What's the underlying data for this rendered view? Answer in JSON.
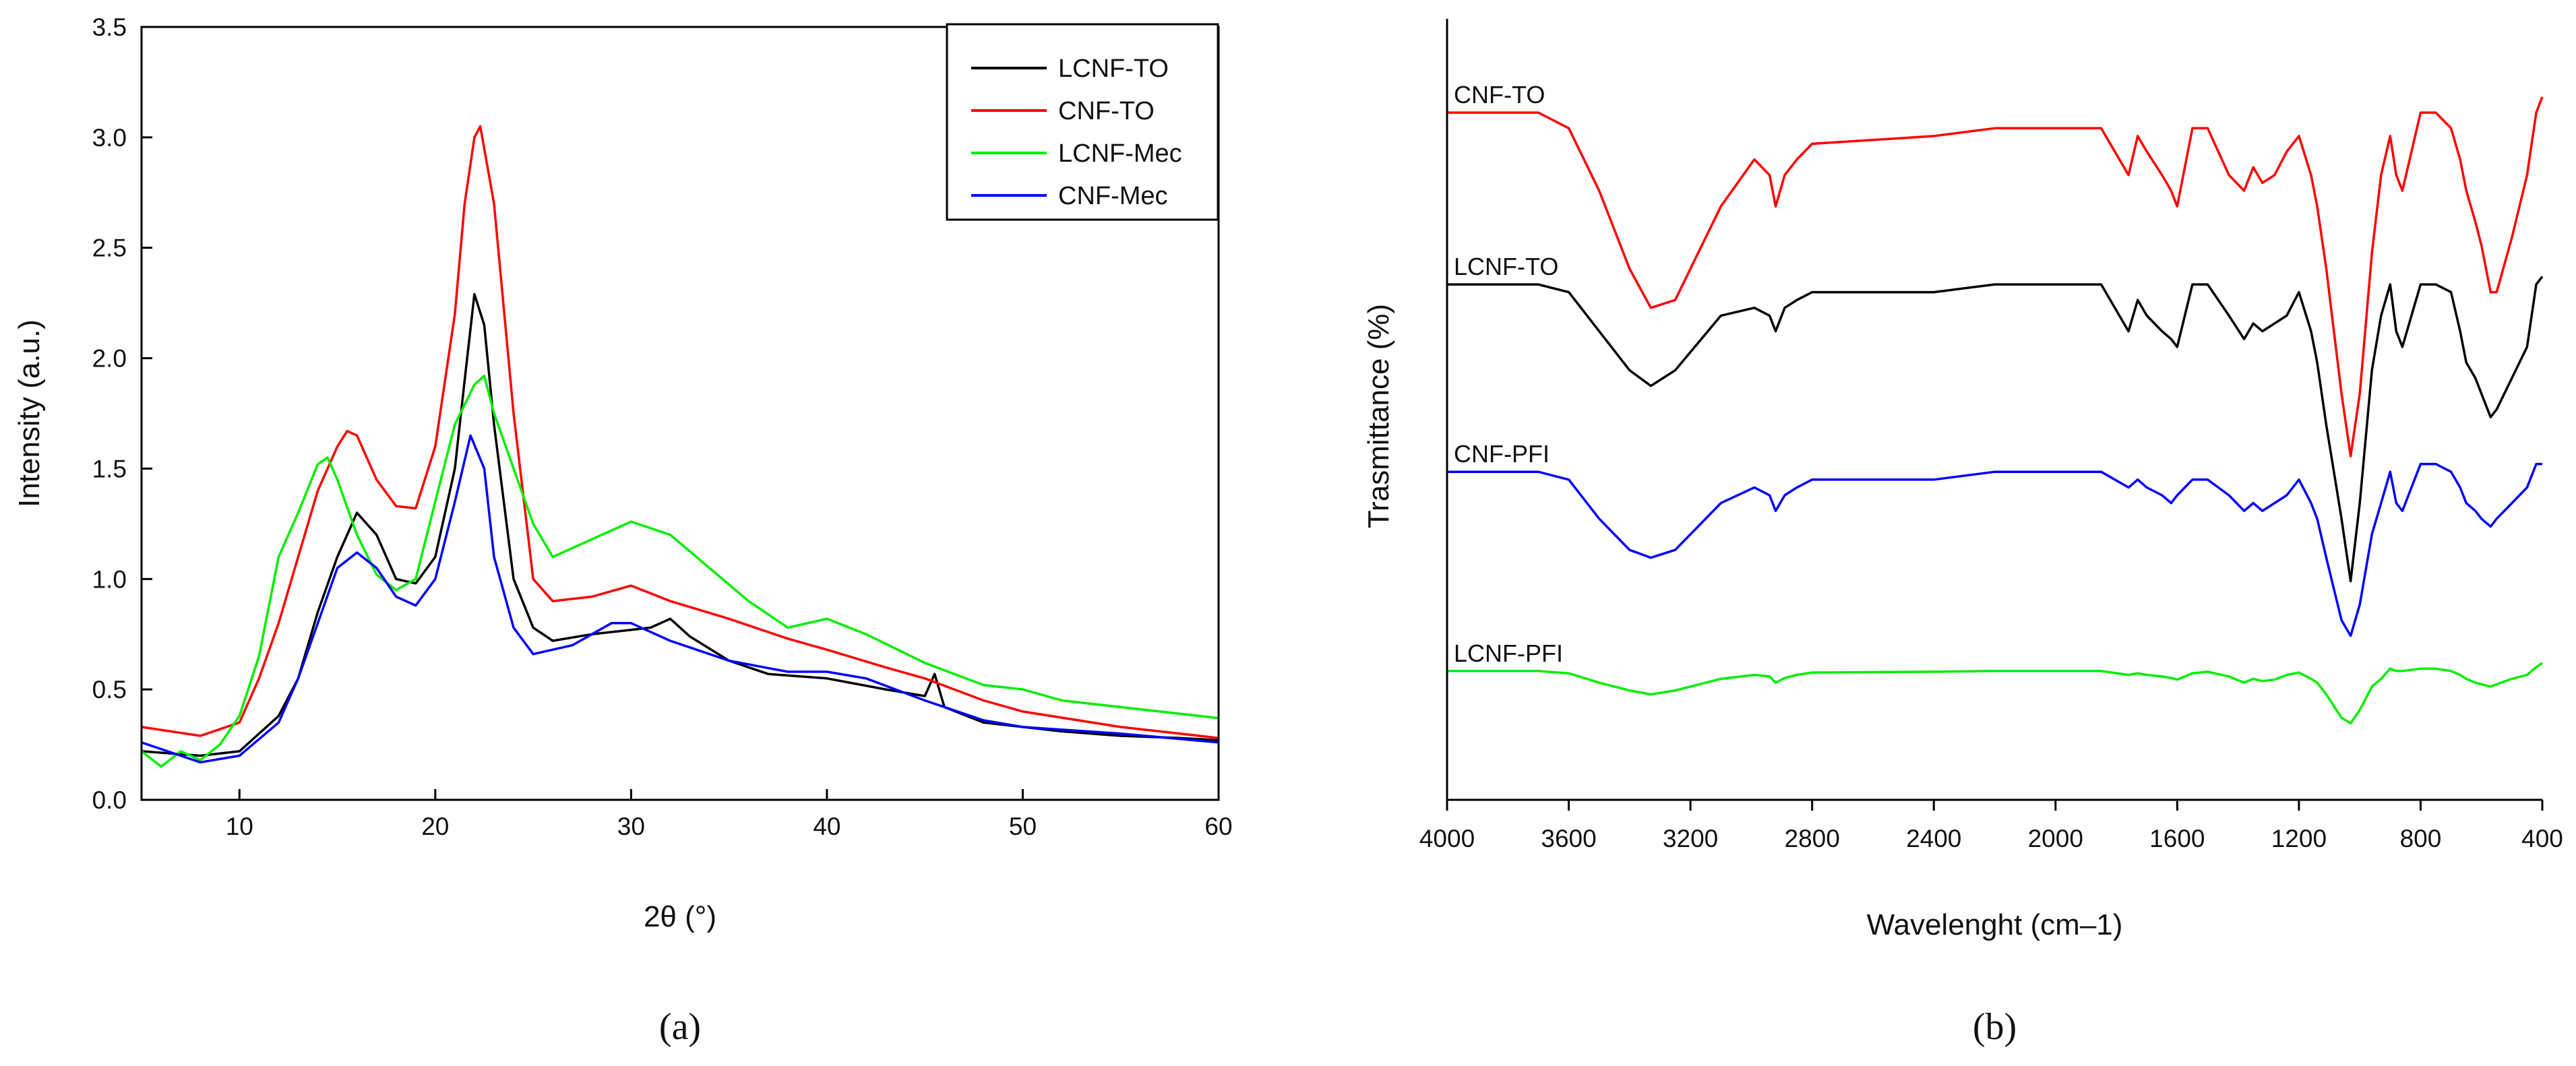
{
  "chart_data": [
    {
      "type": "line",
      "panel_label": "(a)",
      "xlabel": "2θ (°)",
      "ylabel": "Intensity (a.u.)",
      "xlim": [
        5,
        60
      ],
      "ylim": [
        0,
        3.5
      ],
      "xticks": [
        10,
        20,
        30,
        40,
        50,
        60
      ],
      "xtick_labels": [
        "10",
        "20",
        "30",
        "40",
        "50",
        "60"
      ],
      "yticks": [
        0,
        0.5,
        1.0,
        1.5,
        2.0,
        2.5,
        3.0,
        3.5
      ],
      "ytick_labels": [
        "0.0",
        "0.5",
        "1.0",
        "1.5",
        "2.0",
        "2.5",
        "3.0",
        "3.5"
      ],
      "legend_position": "top-right",
      "series": [
        {
          "name": "LCNF-TO",
          "color": "#000000",
          "x": [
            5,
            8,
            10,
            12,
            13,
            14,
            15,
            16,
            17,
            18,
            19,
            20,
            21,
            21.5,
            22,
            22.5,
            23,
            24,
            25,
            26,
            28,
            30,
            31,
            32,
            33,
            35,
            37,
            40,
            43,
            45,
            45.5,
            46,
            48,
            50,
            52,
            55,
            58,
            60
          ],
          "y": [
            0.22,
            0.2,
            0.22,
            0.38,
            0.55,
            0.85,
            1.1,
            1.3,
            1.2,
            1.0,
            0.98,
            1.1,
            1.5,
            1.9,
            2.29,
            2.15,
            1.7,
            1.0,
            0.78,
            0.72,
            0.75,
            0.77,
            0.78,
            0.82,
            0.74,
            0.63,
            0.57,
            0.55,
            0.5,
            0.47,
            0.57,
            0.42,
            0.35,
            0.33,
            0.31,
            0.29,
            0.28,
            0.27
          ]
        },
        {
          "name": "CNF-TO",
          "color": "#ff0000",
          "x": [
            5,
            8,
            10,
            11,
            12,
            13,
            14,
            15,
            15.5,
            16,
            17,
            18,
            19,
            20,
            21,
            21.5,
            22,
            22.3,
            23,
            24,
            25,
            26,
            28,
            30,
            32,
            35,
            38,
            40,
            43,
            45,
            48,
            50,
            55,
            60
          ],
          "y": [
            0.33,
            0.29,
            0.35,
            0.55,
            0.8,
            1.1,
            1.4,
            1.6,
            1.67,
            1.65,
            1.45,
            1.33,
            1.32,
            1.6,
            2.2,
            2.7,
            3.0,
            3.05,
            2.7,
            1.75,
            1.0,
            0.9,
            0.92,
            0.97,
            0.9,
            0.82,
            0.73,
            0.68,
            0.6,
            0.55,
            0.45,
            0.4,
            0.33,
            0.28
          ]
        },
        {
          "name": "LCNF-Mec",
          "color": "#00ee00",
          "x": [
            5,
            6,
            7,
            8,
            9,
            10,
            11,
            12,
            13,
            14,
            14.5,
            15,
            16,
            17,
            18,
            19,
            20,
            21,
            22,
            22.5,
            23,
            24,
            25,
            26,
            28,
            30,
            32,
            34,
            36,
            38,
            40,
            42,
            45,
            48,
            50,
            52,
            55,
            60
          ],
          "y": [
            0.22,
            0.15,
            0.22,
            0.18,
            0.25,
            0.38,
            0.65,
            1.1,
            1.3,
            1.52,
            1.55,
            1.45,
            1.2,
            1.02,
            0.95,
            1.0,
            1.35,
            1.7,
            1.88,
            1.92,
            1.75,
            1.5,
            1.25,
            1.1,
            1.18,
            1.26,
            1.2,
            1.05,
            0.9,
            0.78,
            0.82,
            0.75,
            0.62,
            0.52,
            0.5,
            0.45,
            0.42,
            0.37
          ]
        },
        {
          "name": "CNF-Mec",
          "color": "#0000ff",
          "x": [
            5,
            7,
            8,
            10,
            12,
            13,
            14,
            15,
            16,
            17,
            18,
            19,
            20,
            21,
            21.8,
            22.5,
            23,
            24,
            25,
            27,
            29,
            30,
            32,
            35,
            38,
            40,
            42,
            45,
            48,
            50,
            55,
            60
          ],
          "y": [
            0.26,
            0.2,
            0.17,
            0.2,
            0.35,
            0.55,
            0.8,
            1.05,
            1.12,
            1.05,
            0.92,
            0.88,
            1.0,
            1.35,
            1.65,
            1.5,
            1.1,
            0.78,
            0.66,
            0.7,
            0.8,
            0.8,
            0.72,
            0.63,
            0.58,
            0.58,
            0.55,
            0.45,
            0.36,
            0.33,
            0.3,
            0.26
          ]
        }
      ]
    },
    {
      "type": "line",
      "panel_label": "(b)",
      "xlabel": "Wavelenght (cm–1)",
      "ylabel": "Trasmittance (%)",
      "xlim": [
        4000,
        400
      ],
      "x_reversed": true,
      "xticks": [
        4000,
        3600,
        3200,
        2800,
        2400,
        2000,
        1600,
        1200,
        800,
        400
      ],
      "xtick_labels": [
        "4000",
        "3600",
        "3200",
        "2800",
        "2400",
        "2000",
        "1600",
        "1200",
        "800",
        "400"
      ],
      "yticks": [],
      "ylim": [
        0,
        100
      ],
      "series": [
        {
          "name": "CNF-TO",
          "color": "#ff0000",
          "x": [
            4000,
            3700,
            3600,
            3500,
            3400,
            3330,
            3250,
            3100,
            2990,
            2940,
            2920,
            2890,
            2850,
            2800,
            2400,
            2200,
            2000,
            1850,
            1760,
            1730,
            1700,
            1650,
            1620,
            1600,
            1550,
            1500,
            1430,
            1380,
            1350,
            1320,
            1280,
            1240,
            1200,
            1160,
            1140,
            1110,
            1060,
            1030,
            1000,
            960,
            930,
            900,
            880,
            860,
            800,
            750,
            700,
            670,
            650,
            620,
            600,
            570,
            550,
            500,
            450,
            420,
            400
          ],
          "y": [
            88,
            88,
            86,
            78,
            68,
            63,
            64,
            76,
            82,
            80,
            76,
            80,
            82,
            84,
            85,
            86,
            86,
            86,
            80,
            85,
            83,
            80,
            78,
            76,
            86,
            86,
            80,
            78,
            81,
            79,
            80,
            83,
            85,
            80,
            76,
            68,
            52,
            44,
            52,
            70,
            80,
            85,
            80,
            78,
            88,
            88,
            86,
            82,
            78,
            74,
            71,
            65,
            65,
            72,
            80,
            88,
            90
          ]
        },
        {
          "name": "LCNF-TO",
          "color": "#000000",
          "x": [
            4000,
            3700,
            3600,
            3500,
            3400,
            3330,
            3250,
            3100,
            2990,
            2940,
            2920,
            2890,
            2850,
            2800,
            2400,
            2200,
            2000,
            1850,
            1760,
            1730,
            1700,
            1650,
            1620,
            1600,
            1550,
            1500,
            1430,
            1380,
            1350,
            1320,
            1280,
            1240,
            1200,
            1160,
            1140,
            1110,
            1060,
            1030,
            1000,
            960,
            930,
            900,
            880,
            860,
            800,
            750,
            700,
            670,
            650,
            620,
            600,
            570,
            550,
            500,
            450,
            420,
            400
          ],
          "y": [
            66,
            66,
            65,
            60,
            55,
            53,
            55,
            62,
            63,
            62,
            60,
            63,
            64,
            65,
            65,
            66,
            66,
            66,
            60,
            64,
            62,
            60,
            59,
            58,
            66,
            66,
            62,
            59,
            61,
            60,
            61,
            62,
            65,
            60,
            56,
            48,
            36,
            28,
            38,
            55,
            62,
            66,
            60,
            58,
            66,
            66,
            65,
            60,
            56,
            54,
            52,
            49,
            50,
            54,
            58,
            66,
            67
          ]
        },
        {
          "name": "CNF-PFI",
          "color": "#0000ff",
          "x": [
            4000,
            3700,
            3600,
            3500,
            3400,
            3330,
            3250,
            3100,
            2990,
            2940,
            2920,
            2890,
            2850,
            2800,
            2400,
            2200,
            2000,
            1850,
            1760,
            1730,
            1700,
            1650,
            1620,
            1600,
            1550,
            1500,
            1430,
            1380,
            1350,
            1320,
            1280,
            1240,
            1200,
            1160,
            1140,
            1110,
            1060,
            1030,
            1000,
            960,
            930,
            900,
            880,
            860,
            800,
            750,
            700,
            670,
            650,
            620,
            600,
            570,
            550,
            500,
            450,
            420,
            400
          ],
          "y": [
            42,
            42,
            41,
            36,
            32,
            31,
            32,
            38,
            40,
            39,
            37,
            39,
            40,
            41,
            41,
            42,
            42,
            42,
            40,
            41,
            40,
            39,
            38,
            39,
            41,
            41,
            39,
            37,
            38,
            37,
            38,
            39,
            41,
            38,
            36,
            31,
            23,
            21,
            25,
            34,
            38,
            42,
            38,
            37,
            43,
            43,
            42,
            40,
            38,
            37,
            36,
            35,
            36,
            38,
            40,
            43,
            43
          ]
        },
        {
          "name": "LCNF-PFI",
          "color": "#00ee00",
          "x": [
            4000,
            3700,
            3600,
            3500,
            3400,
            3330,
            3250,
            3100,
            2990,
            2940,
            2920,
            2890,
            2850,
            2800,
            2400,
            2200,
            2000,
            1850,
            1760,
            1730,
            1700,
            1650,
            1620,
            1600,
            1550,
            1500,
            1430,
            1380,
            1350,
            1320,
            1280,
            1240,
            1200,
            1160,
            1140,
            1110,
            1060,
            1030,
            1000,
            960,
            930,
            900,
            880,
            860,
            800,
            750,
            700,
            670,
            650,
            620,
            600,
            570,
            550,
            500,
            450,
            420,
            400
          ],
          "y": [
            16.5,
            16.5,
            16.2,
            15,
            14,
            13.5,
            14,
            15.5,
            16,
            15.8,
            15,
            15.6,
            16,
            16.3,
            16.4,
            16.5,
            16.5,
            16.5,
            16,
            16.2,
            16,
            15.8,
            15.6,
            15.4,
            16.2,
            16.4,
            15.8,
            15,
            15.5,
            15.2,
            15.4,
            16,
            16.3,
            15.5,
            15,
            13.5,
            10.5,
            9.8,
            11.5,
            14.5,
            15.5,
            16.8,
            16.5,
            16.5,
            16.8,
            16.8,
            16.5,
            16,
            15.5,
            15,
            14.8,
            14.5,
            14.8,
            15.5,
            16,
            17,
            17.5
          ]
        }
      ]
    }
  ]
}
